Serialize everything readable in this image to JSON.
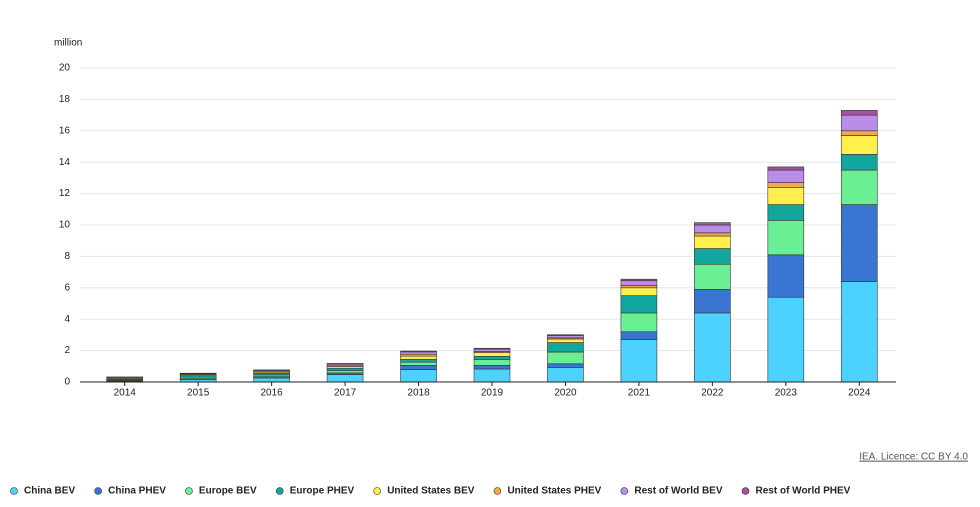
{
  "chart_data": {
    "type": "stacked_bar",
    "y_label": "million",
    "source": "IEA. Licence: CC BY 4.0",
    "categories": [
      "2014",
      "2015",
      "2016",
      "2017",
      "2018",
      "2019",
      "2020",
      "2021",
      "2022",
      "2023",
      "2024"
    ],
    "ylim": [
      0,
      20
    ],
    "yticks": [
      0,
      2,
      4,
      6,
      8,
      10,
      12,
      14,
      16,
      18,
      20
    ],
    "grid": true,
    "series": [
      {
        "name": "China BEV",
        "color": "#4dd2ff",
        "values": [
          0.05,
          0.15,
          0.26,
          0.47,
          0.79,
          0.83,
          0.93,
          2.7,
          4.4,
          5.4,
          6.4
        ]
      },
      {
        "name": "China PHEV",
        "color": "#3a75d1",
        "values": [
          0.02,
          0.06,
          0.08,
          0.11,
          0.27,
          0.23,
          0.23,
          0.5,
          1.5,
          2.7,
          4.9
        ]
      },
      {
        "name": "Europe BEV",
        "color": "#6aef95",
        "values": [
          0.05,
          0.1,
          0.11,
          0.15,
          0.2,
          0.36,
          0.75,
          1.2,
          1.6,
          2.2,
          2.2
        ]
      },
      {
        "name": "Europe PHEV",
        "color": "#12a79d",
        "values": [
          0.05,
          0.1,
          0.1,
          0.15,
          0.19,
          0.21,
          0.6,
          1.1,
          1.0,
          1.0,
          1.0
        ]
      },
      {
        "name": "United States BEV",
        "color": "#fff04d",
        "values": [
          0.06,
          0.07,
          0.08,
          0.1,
          0.2,
          0.24,
          0.23,
          0.5,
          0.8,
          1.1,
          1.2
        ]
      },
      {
        "name": "United States PHEV",
        "color": "#f4a84a",
        "values": [
          0.06,
          0.04,
          0.07,
          0.09,
          0.12,
          0.08,
          0.07,
          0.15,
          0.2,
          0.3,
          0.3
        ]
      },
      {
        "name": "Rest of World BEV",
        "color": "#b98ee9",
        "values": [
          0.02,
          0.03,
          0.05,
          0.08,
          0.15,
          0.15,
          0.15,
          0.3,
          0.5,
          0.8,
          1.0
        ]
      },
      {
        "name": "Rest of World PHEV",
        "color": "#a550a0",
        "values": [
          0.01,
          0.01,
          0.02,
          0.03,
          0.05,
          0.05,
          0.05,
          0.1,
          0.15,
          0.2,
          0.3
        ]
      }
    ]
  }
}
